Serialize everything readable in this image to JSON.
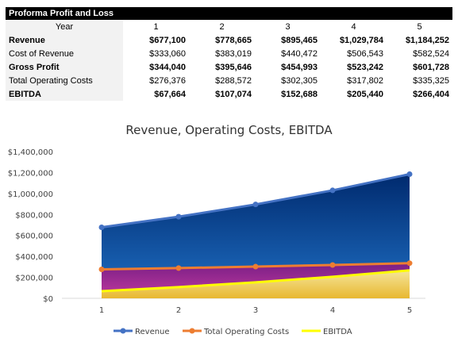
{
  "table": {
    "title": "Proforma Profit and Loss",
    "year_label": "Year",
    "years": [
      "1",
      "2",
      "3",
      "4",
      "5"
    ],
    "rows": [
      {
        "label": "Revenue",
        "bold": true,
        "values": [
          "$677,100",
          "$778,665",
          "$895,465",
          "$1,029,784",
          "$1,184,252"
        ]
      },
      {
        "label": "Cost of Revenue",
        "bold": false,
        "values": [
          "$333,060",
          "$383,019",
          "$440,472",
          "$506,543",
          "$582,524"
        ]
      },
      {
        "label": "Gross Profit",
        "bold": true,
        "values": [
          "$344,040",
          "$395,646",
          "$454,993",
          "$523,242",
          "$601,728"
        ]
      },
      {
        "label": "Total Operating Costs",
        "bold": false,
        "values": [
          "$276,376",
          "$288,572",
          "$302,305",
          "$317,802",
          "$335,325"
        ]
      },
      {
        "label": "EBITDA",
        "bold": true,
        "values": [
          "$67,664",
          "$107,074",
          "$152,688",
          "$205,440",
          "$266,404"
        ]
      }
    ]
  },
  "chart_data": {
    "type": "area",
    "title": "Revenue, Operating Costs, EBITDA",
    "categories": [
      "1",
      "2",
      "3",
      "4",
      "5"
    ],
    "series": [
      {
        "name": "Revenue",
        "values": [
          677100,
          778665,
          895465,
          1029784,
          1184252
        ],
        "color": "#4472c4",
        "fill_top": "#002a6e",
        "fill_bottom": "#1f6fc4"
      },
      {
        "name": "Total Operating Costs",
        "values": [
          276376,
          288572,
          302305,
          317802,
          335325
        ],
        "color": "#ed7d31",
        "fill_top": "#7a1f86",
        "fill_bottom": "#c0399e"
      },
      {
        "name": "EBITDA",
        "values": [
          67664,
          107074,
          152688,
          205440,
          266404
        ],
        "color": "#ffff00",
        "fill_top": "#f5e59a",
        "fill_bottom": "#e8b830"
      }
    ],
    "y_ticks": [
      "$0",
      "$200,000",
      "$400,000",
      "$600,000",
      "$800,000",
      "$1,000,000",
      "$1,200,000",
      "$1,400,000"
    ],
    "ylim": [
      0,
      1400000
    ],
    "xlabel": "",
    "ylabel": "",
    "legend_position": "bottom",
    "grid": false
  }
}
